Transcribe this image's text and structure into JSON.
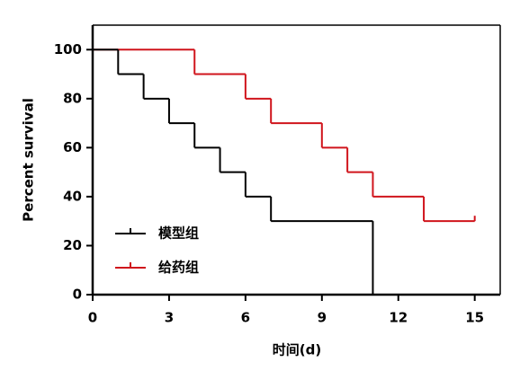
{
  "chart_data": {
    "type": "step",
    "xlabel": "时间(d)",
    "ylabel": "Percent survival",
    "xlim": [
      0,
      16
    ],
    "ylim": [
      0,
      110
    ],
    "xticks": [
      0,
      3,
      6,
      9,
      12,
      15
    ],
    "yticks": [
      0,
      20,
      40,
      60,
      80,
      100
    ],
    "legend": "lower left",
    "series": [
      {
        "name": "模型组",
        "color": "#000000",
        "x": [
          0,
          1,
          2,
          3,
          4,
          5,
          6,
          7,
          11
        ],
        "values": [
          100,
          90,
          80,
          70,
          60,
          50,
          40,
          30,
          0
        ]
      },
      {
        "name": "给药组",
        "color": "#d0141c",
        "x": [
          0,
          4,
          6,
          7,
          9,
          10,
          11,
          13,
          15
        ],
        "values": [
          100,
          90,
          80,
          70,
          60,
          50,
          40,
          30,
          30
        ]
      }
    ]
  }
}
